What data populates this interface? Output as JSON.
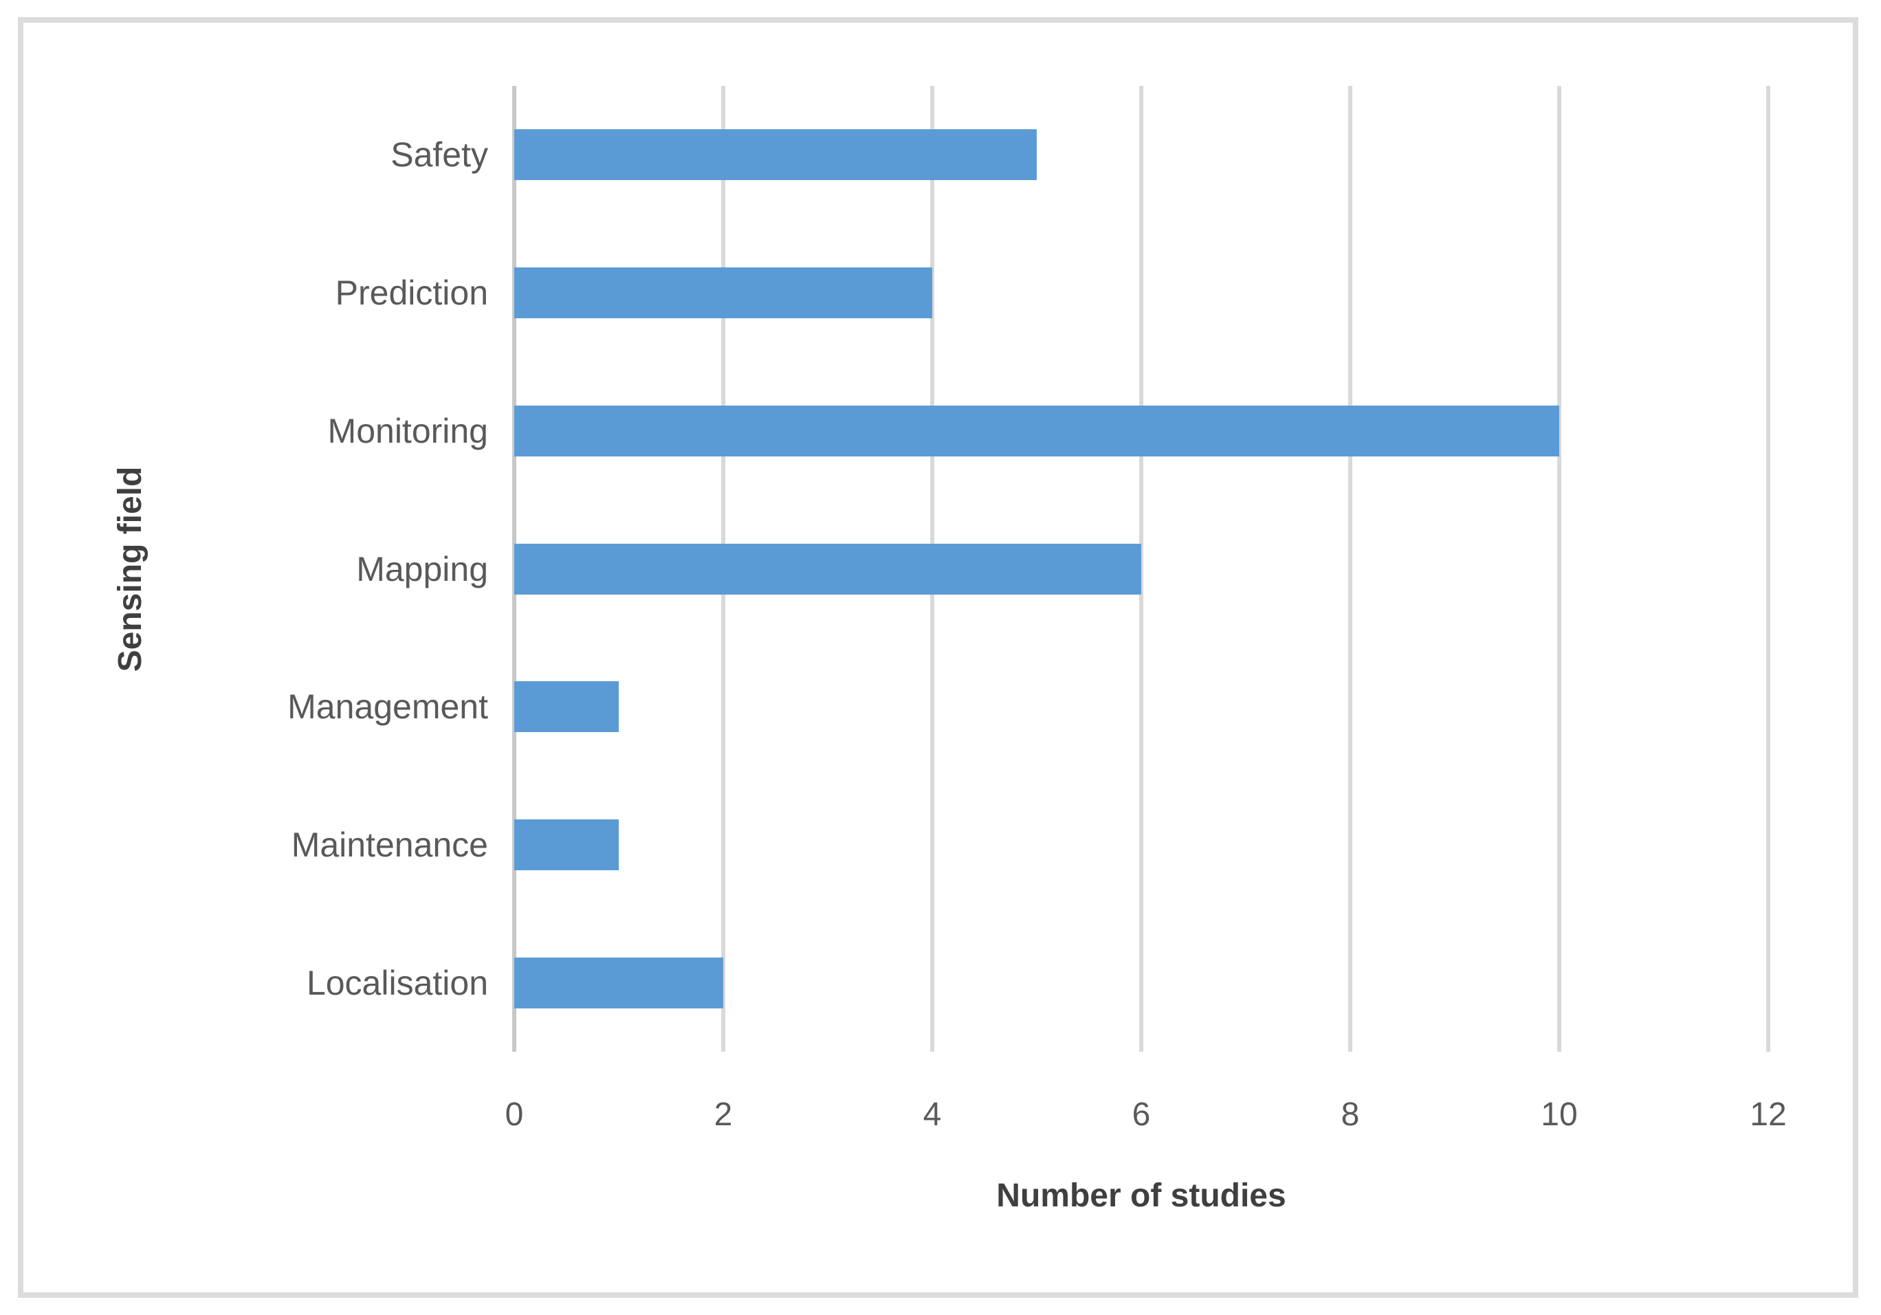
{
  "chart_data": {
    "type": "bar",
    "orientation": "horizontal",
    "title": "",
    "xlabel": "Number of studies",
    "ylabel": "Sensing field",
    "categories": [
      "Safety",
      "Prediction",
      "Monitoring",
      "Mapping",
      "Management",
      "Maintenance",
      "Localisation"
    ],
    "values": [
      5,
      4,
      10,
      6,
      1,
      1,
      2
    ],
    "x_ticks": [
      0,
      2,
      4,
      6,
      8,
      10,
      12
    ],
    "xlim": [
      0,
      12
    ],
    "grid": "vertical",
    "legend": "none",
    "colors": {
      "bar": "#5B9BD5",
      "gridline": "#D9D9D9",
      "axis_line": "#C8C8C8",
      "tick_label": "#595959",
      "category_label": "#595959",
      "axis_title": "#3F3F3F",
      "frame_border": "#DCDCDC",
      "background": "#FFFFFF"
    }
  }
}
